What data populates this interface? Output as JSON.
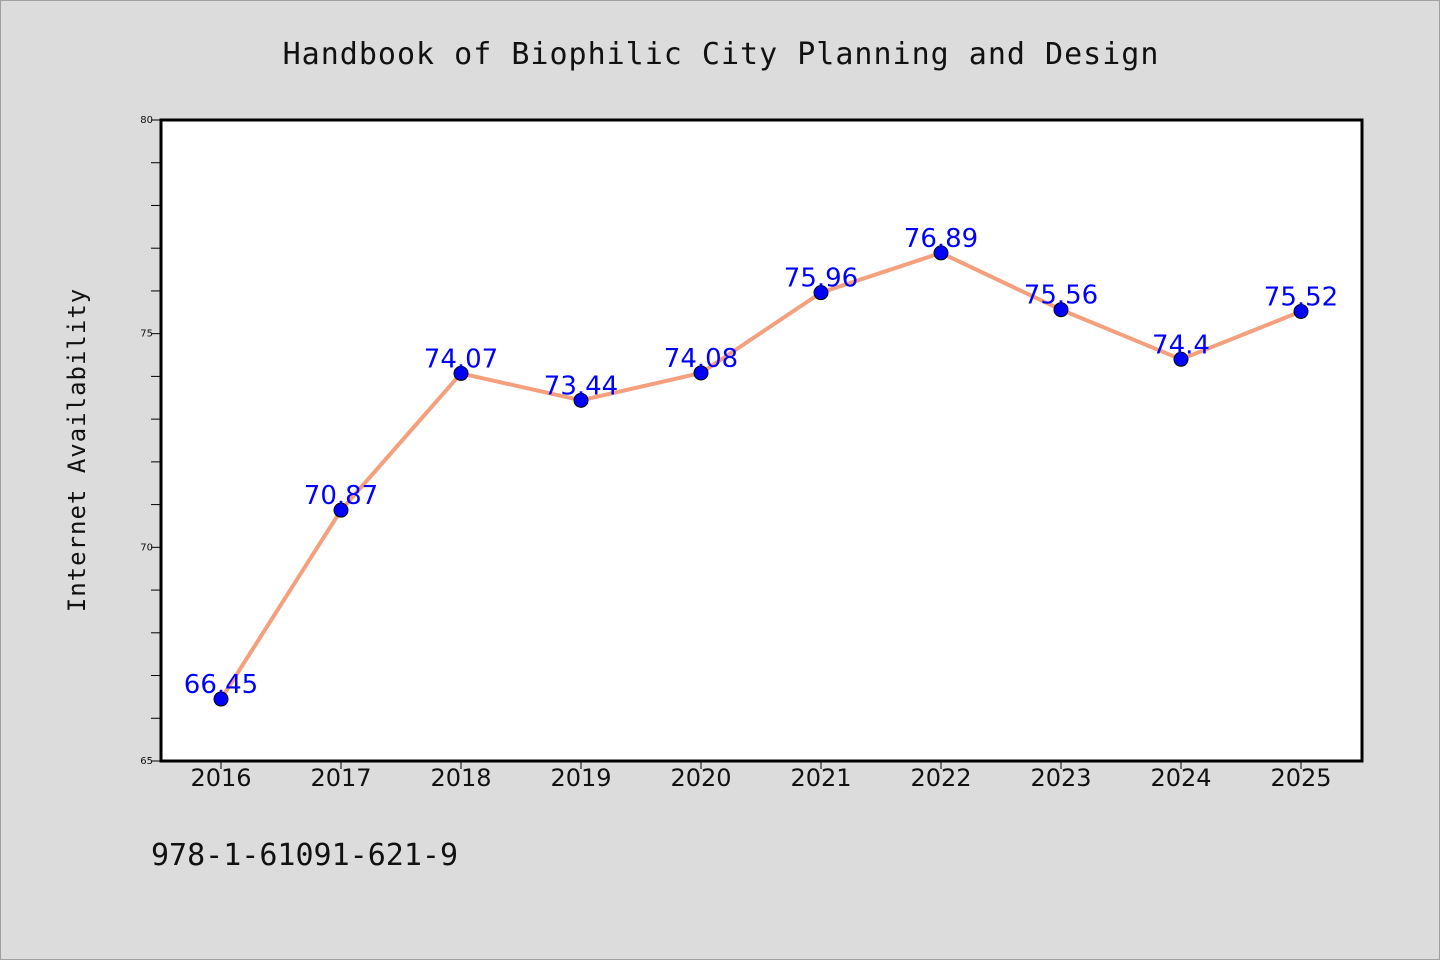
{
  "chart_data": {
    "type": "line",
    "title": "Handbook of Biophilic City Planning and Design",
    "xlabel": "",
    "ylabel": "Internet Availability",
    "categories": [
      "2016",
      "2017",
      "2018",
      "2019",
      "2020",
      "2021",
      "2022",
      "2023",
      "2024",
      "2025"
    ],
    "series": [
      {
        "values": [
          66.45,
          70.87,
          74.07,
          73.44,
          74.08,
          75.96,
          76.89,
          75.56,
          74.4,
          75.52
        ],
        "data_labels": [
          "66.45",
          "70.87",
          "74.07",
          "73.44",
          "74.08",
          "75.96",
          "76.89",
          "75.56",
          "74.4",
          "75.52"
        ]
      }
    ],
    "ylim": [
      65,
      80
    ],
    "yticks": [
      "65",
      "70",
      "75",
      "80"
    ],
    "grid": false,
    "legend": "none",
    "colors": {
      "line": "#f4a07c",
      "marker": "#0000ff",
      "data_label": "#0000ff",
      "background": "#dcdcdc",
      "plot_area": "#ffffff"
    }
  },
  "footer": {
    "isbn": "978-1-61091-621-9"
  }
}
